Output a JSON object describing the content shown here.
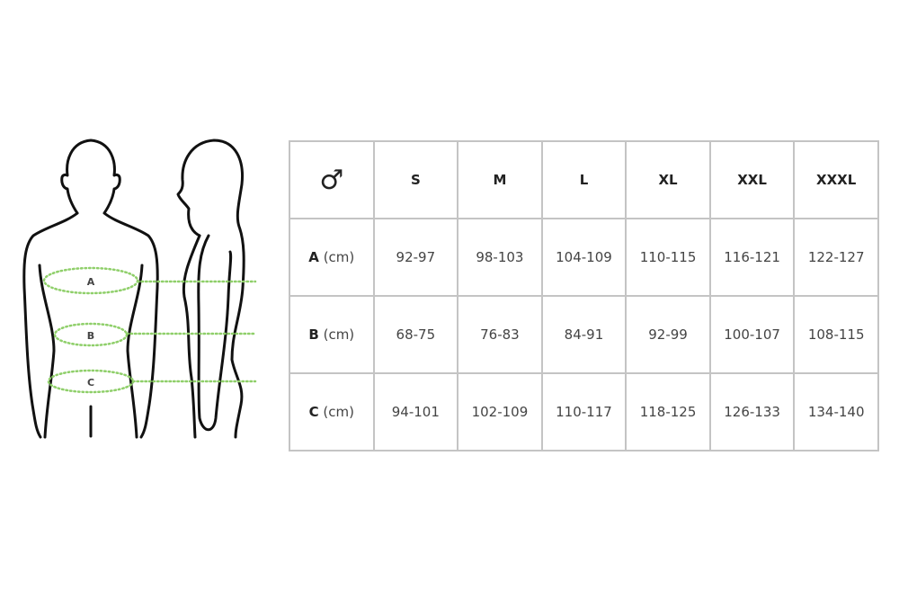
{
  "figure": {
    "labels": [
      "A",
      "B",
      "C"
    ],
    "outline_color": "#111111",
    "measure_color": "#8fcf6a"
  },
  "table": {
    "corner_icon": "male-symbol-icon",
    "corner_glyph": "♂",
    "sizes": [
      "S",
      "M",
      "L",
      "XL",
      "XXL",
      "XXXL"
    ],
    "rows": [
      {
        "label": "A",
        "unit": "(cm)",
        "values": [
          "92-97",
          "98-103",
          "104-109",
          "110-115",
          "116-121",
          "122-127"
        ]
      },
      {
        "label": "B",
        "unit": "(cm)",
        "values": [
          "68-75",
          "76-83",
          "84-91",
          "92-99",
          "100-107",
          "108-115"
        ]
      },
      {
        "label": "C",
        "unit": "(cm)",
        "values": [
          "94-101",
          "102-109",
          "110-117",
          "118-125",
          "126-133",
          "134-140"
        ]
      }
    ]
  }
}
